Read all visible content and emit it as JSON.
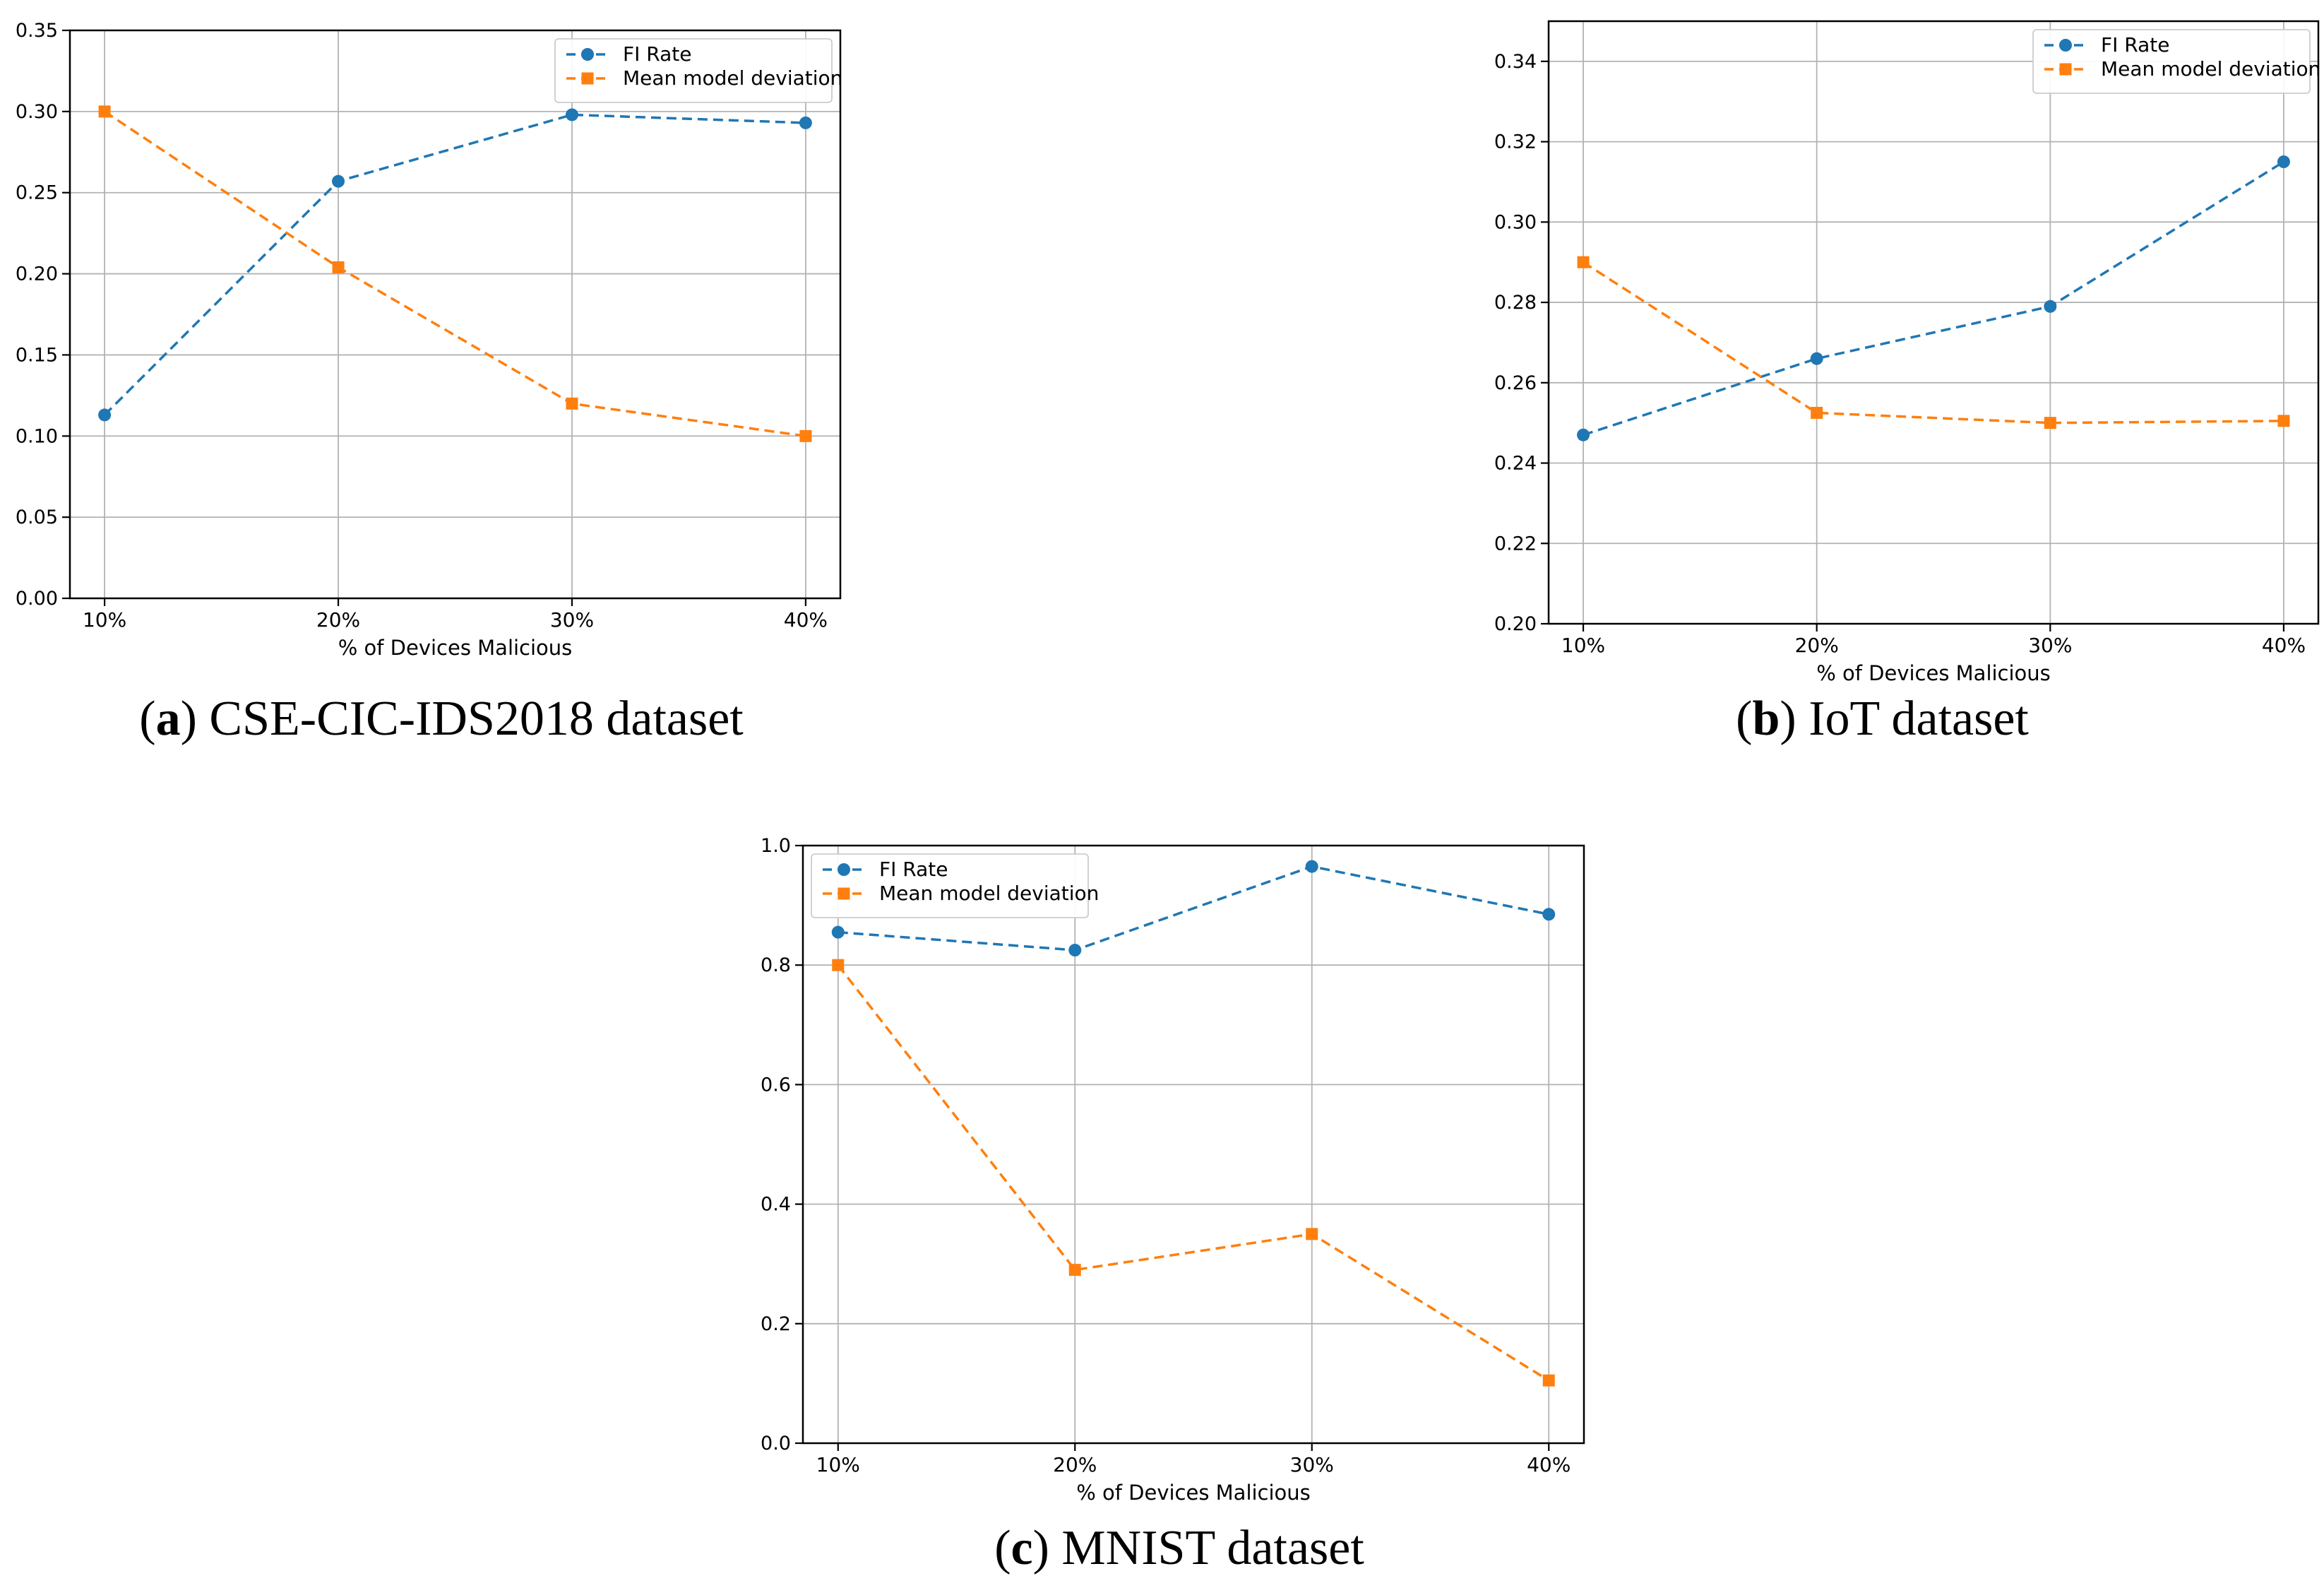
{
  "style": {
    "background": "#ffffff",
    "blue": "#1f77b4",
    "orange": "#ff7f0e",
    "grid_color": "#b3b3b3",
    "spine_color": "#000000",
    "text_color": "#000000",
    "legend_border": "#cccccc",
    "legend_fill": "#ffffff"
  },
  "captions": [
    {
      "open": "(",
      "letter": "a",
      "close": ")",
      "text": "CSE-CIC-IDS2018 dataset"
    },
    {
      "open": "(",
      "letter": "b",
      "close": ")",
      "text": "IoT dataset"
    },
    {
      "open": "(",
      "letter": "c",
      "close": ")",
      "text": "MNIST dataset"
    }
  ],
  "chart_data": [
    {
      "id": "a",
      "type": "line",
      "title": "(a) CSE-CIC-IDS2018 dataset",
      "xlabel": "% of Devices Malicious",
      "ylabel": "",
      "categories": [
        "10%",
        "20%",
        "30%",
        "40%"
      ],
      "ylim": [
        0.0,
        0.35
      ],
      "yticks": [
        0.0,
        0.05,
        0.1,
        0.15,
        0.2,
        0.25,
        0.3,
        0.35
      ],
      "ytick_labels": [
        "0.00",
        "0.05",
        "0.10",
        "0.15",
        "0.20",
        "0.25",
        "0.30",
        "0.35"
      ],
      "grid": true,
      "legend_position": "upper right",
      "series": [
        {
          "name": "FI Rate",
          "color_key": "blue",
          "marker": "circle",
          "linestyle": "dashed",
          "values": [
            0.113,
            0.257,
            0.298,
            0.293
          ]
        },
        {
          "name": "Mean model deviation",
          "color_key": "orange",
          "marker": "square",
          "linestyle": "dashed",
          "values": [
            0.3,
            0.204,
            0.12,
            0.1
          ]
        }
      ]
    },
    {
      "id": "b",
      "type": "line",
      "title": "(b) IoT dataset",
      "xlabel": "% of Devices Malicious",
      "ylabel": "",
      "categories": [
        "10%",
        "20%",
        "30%",
        "40%"
      ],
      "ylim": [
        0.2,
        0.35
      ],
      "yticks": [
        0.2,
        0.22,
        0.24,
        0.26,
        0.28,
        0.3,
        0.32,
        0.34
      ],
      "ytick_labels": [
        "0.20",
        "0.22",
        "0.24",
        "0.26",
        "0.28",
        "0.30",
        "0.32",
        "0.34"
      ],
      "grid": true,
      "legend_position": "upper right",
      "series": [
        {
          "name": "FI Rate",
          "color_key": "blue",
          "marker": "circle",
          "linestyle": "dashed",
          "values": [
            0.247,
            0.266,
            0.279,
            0.315
          ]
        },
        {
          "name": "Mean model deviation",
          "color_key": "orange",
          "marker": "square",
          "linestyle": "dashed",
          "values": [
            0.29,
            0.2525,
            0.25,
            0.2505
          ]
        }
      ]
    },
    {
      "id": "c",
      "type": "line",
      "title": "(c) MNIST dataset",
      "xlabel": "% of Devices Malicious",
      "ylabel": "",
      "categories": [
        "10%",
        "20%",
        "30%",
        "40%"
      ],
      "ylim": [
        0.0,
        1.0
      ],
      "yticks": [
        0.0,
        0.2,
        0.4,
        0.6,
        0.8,
        1.0
      ],
      "ytick_labels": [
        "0.0",
        "0.2",
        "0.4",
        "0.6",
        "0.8",
        "1.0"
      ],
      "grid": true,
      "legend_position": "upper left",
      "series": [
        {
          "name": "FI Rate",
          "color_key": "blue",
          "marker": "circle",
          "linestyle": "dashed",
          "values": [
            0.855,
            0.825,
            0.965,
            0.885
          ]
        },
        {
          "name": "Mean model deviation",
          "color_key": "orange",
          "marker": "square",
          "linestyle": "dashed",
          "values": [
            0.8,
            0.29,
            0.35,
            0.105
          ]
        }
      ]
    }
  ]
}
